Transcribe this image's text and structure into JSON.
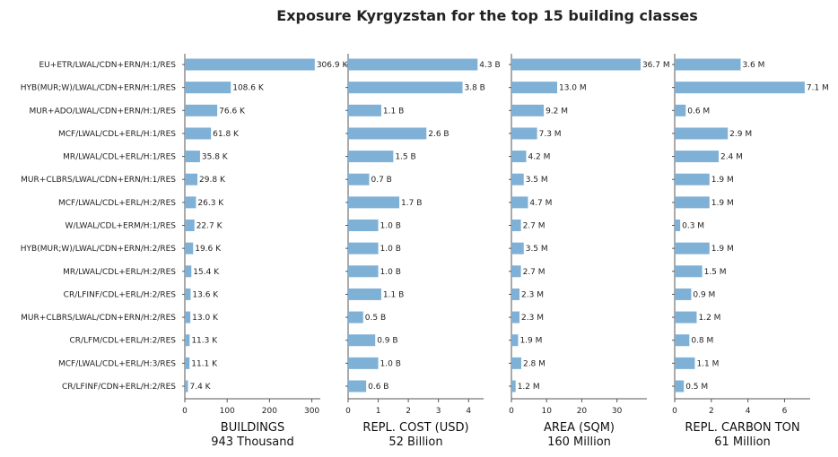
{
  "title": "Exposure Kyrgyzstan for the top 15 building classes",
  "chart_data": {
    "type": "bar",
    "orientation": "horizontal",
    "bar_color": "#7fb0d5",
    "categories": [
      "EU+ETR/LWAL/CDN+ERN/H:1/RES",
      "HYB(MUR;W)/LWAL/CDN+ERN/H:1/RES",
      "MUR+ADO/LWAL/CDN+ERN/H:1/RES",
      "MCF/LWAL/CDL+ERL/H:1/RES",
      "MR/LWAL/CDL+ERL/H:1/RES",
      "MUR+CLBRS/LWAL/CDN+ERN/H:1/RES",
      "MCF/LWAL/CDL+ERL/H:2/RES",
      "W/LWAL/CDL+ERM/H:1/RES",
      "HYB(MUR;W)/LWAL/CDN+ERN/H:2/RES",
      "MR/LWAL/CDL+ERL/H:2/RES",
      "CR/LFINF/CDL+ERL/H:2/RES",
      "MUR+CLBRS/LWAL/CDN+ERN/H:2/RES",
      "CR/LFM/CDL+ERL/H:2/RES",
      "MCF/LWAL/CDL+ERL/H:3/RES",
      "CR/LFINF/CDN+ERL/H:2/RES"
    ],
    "panels": [
      {
        "name": "buildings",
        "xlabel": "BUILDINGS",
        "total": "943 Thousand",
        "xlim": [
          0,
          320
        ],
        "ticks": [
          0,
          100,
          200,
          300
        ],
        "tick_labels": [
          "0",
          "100",
          "200",
          "300"
        ],
        "values": [
          306.9,
          108.6,
          76.6,
          61.8,
          35.8,
          29.8,
          26.3,
          22.7,
          19.6,
          15.4,
          13.6,
          13.0,
          11.3,
          11.1,
          7.4
        ],
        "labels": [
          "306.9 K",
          "108.6 K",
          "76.6 K",
          "61.8 K",
          "35.8 K",
          "29.8 K",
          "26.3 K",
          "22.7 K",
          "19.6 K",
          "15.4 K",
          "13.6 K",
          "13.0 K",
          "11.3 K",
          "11.1 K",
          "7.4 K"
        ]
      },
      {
        "name": "cost",
        "xlabel": "REPL. COST (USD)",
        "total": "52 Billion",
        "xlim": [
          0,
          4.5
        ],
        "ticks": [
          0,
          1,
          2,
          3,
          4
        ],
        "tick_labels": [
          "0",
          "1",
          "2",
          "3",
          "4"
        ],
        "values": [
          4.3,
          3.8,
          1.1,
          2.6,
          1.5,
          0.7,
          1.7,
          1.0,
          1.0,
          1.0,
          1.1,
          0.5,
          0.9,
          1.0,
          0.6
        ],
        "labels": [
          "4.3 B",
          "3.8 B",
          "1.1 B",
          "2.6 B",
          "1.5 B",
          "0.7 B",
          "1.7 B",
          "1.0 B",
          "1.0 B",
          "1.0 B",
          "1.1 B",
          "0.5 B",
          "0.9 B",
          "1.0 B",
          "0.6 B"
        ]
      },
      {
        "name": "area",
        "xlabel": "AREA (SQM)",
        "total": "160 Million",
        "xlim": [
          0,
          38.5
        ],
        "ticks": [
          0,
          10,
          20,
          30
        ],
        "tick_labels": [
          "0",
          "10",
          "20",
          "30"
        ],
        "values": [
          36.7,
          13.0,
          9.2,
          7.3,
          4.2,
          3.5,
          4.7,
          2.7,
          3.5,
          2.7,
          2.3,
          2.3,
          1.9,
          2.8,
          1.2
        ],
        "labels": [
          "36.7 M",
          "13.0 M",
          "9.2 M",
          "7.3 M",
          "4.2 M",
          "3.5 M",
          "4.7 M",
          "2.7 M",
          "3.5 M",
          "2.7 M",
          "2.3 M",
          "2.3 M",
          "1.9 M",
          "2.8 M",
          "1.2 M"
        ]
      },
      {
        "name": "carbon",
        "xlabel": "REPL. CARBON TON",
        "total": "61 Million",
        "xlim": [
          0,
          7.4
        ],
        "ticks": [
          0,
          2,
          4,
          6
        ],
        "tick_labels": [
          "0",
          "2",
          "4",
          "6"
        ],
        "values": [
          3.6,
          7.1,
          0.6,
          2.9,
          2.4,
          1.9,
          1.9,
          0.3,
          1.9,
          1.5,
          0.9,
          1.2,
          0.8,
          1.1,
          0.5
        ],
        "labels": [
          "3.6 M",
          "7.1 M",
          "0.6 M",
          "2.9 M",
          "2.4 M",
          "1.9 M",
          "1.9 M",
          "0.3 M",
          "1.9 M",
          "1.5 M",
          "0.9 M",
          "1.2 M",
          "0.8 M",
          "1.1 M",
          "0.5 M"
        ]
      }
    ]
  }
}
